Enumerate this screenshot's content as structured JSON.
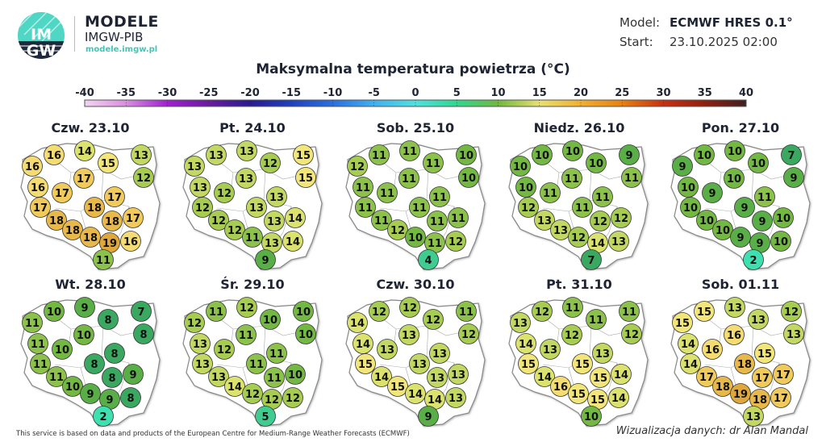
{
  "header": {
    "brand_title": "MODELE",
    "brand_subtitle": "IMGW-PIB",
    "brand_url": "modele.imgw.pl",
    "logo_text": "IMGW",
    "model_label": "Model:",
    "model_value": "ECMWF HRES 0.1°",
    "start_label": "Start:",
    "start_value": "23.10.2025 02:00"
  },
  "chart_data": {
    "type": "map-station-values",
    "title": "Maksymalna temperatura powietrza (°C)",
    "colorbar": {
      "ticks": [
        "-40",
        "-35",
        "-30",
        "-25",
        "-20",
        "-15",
        "-10",
        "-5",
        "0",
        "5",
        "10",
        "15",
        "20",
        "25",
        "30",
        "35",
        "40"
      ],
      "range": [
        -40,
        40
      ],
      "colors": [
        "#f4d4f0",
        "#d98ee0",
        "#a020d0",
        "#6a1aa0",
        "#2a1a90",
        "#2040c0",
        "#2a70e0",
        "#40b0f0",
        "#50e0e0",
        "#30d890",
        "#70b840",
        "#e8e070",
        "#f0b030",
        "#e88010",
        "#c83010",
        "#902010",
        "#402020"
      ]
    },
    "days": [
      {
        "label": "Czw. 23.10",
        "values": [
          16,
          16,
          14,
          15,
          13,
          12,
          16,
          17,
          17,
          17,
          17,
          18,
          18,
          18,
          17,
          18,
          18,
          19,
          16,
          11
        ]
      },
      {
        "label": "Pt. 24.10",
        "values": [
          13,
          13,
          13,
          12,
          15,
          15,
          13,
          13,
          12,
          13,
          12,
          13,
          12,
          13,
          14,
          12,
          11,
          13,
          14,
          9
        ]
      },
      {
        "label": "Sob. 25.10",
        "values": [
          12,
          11,
          11,
          11,
          10,
          10,
          11,
          11,
          11,
          11,
          11,
          11,
          11,
          11,
          11,
          12,
          10,
          11,
          12,
          4
        ]
      },
      {
        "label": "Niedz. 26.10",
        "values": [
          10,
          10,
          10,
          10,
          9,
          11,
          10,
          11,
          11,
          11,
          12,
          11,
          13,
          12,
          12,
          13,
          12,
          14,
          13,
          7
        ]
      },
      {
        "label": "Pon. 27.10",
        "values": [
          9,
          10,
          10,
          10,
          7,
          9,
          10,
          10,
          9,
          11,
          10,
          9,
          10,
          9,
          10,
          10,
          9,
          9,
          10,
          2
        ]
      },
      {
        "label": "Wt. 28.10",
        "values": [
          11,
          10,
          9,
          8,
          7,
          8,
          11,
          10,
          10,
          8,
          11,
          8,
          11,
          8,
          9,
          10,
          9,
          9,
          8,
          2
        ]
      },
      {
        "label": "Śr. 29.10",
        "values": [
          12,
          11,
          12,
          10,
          10,
          10,
          13,
          11,
          12,
          11,
          13,
          11,
          13,
          11,
          10,
          14,
          12,
          12,
          12,
          5
        ]
      },
      {
        "label": "Czw. 30.10",
        "values": [
          14,
          12,
          12,
          12,
          11,
          12,
          14,
          13,
          13,
          13,
          15,
          13,
          14,
          13,
          13,
          15,
          14,
          14,
          13,
          9
        ]
      },
      {
        "label": "Pt. 31.10",
        "values": [
          13,
          12,
          11,
          11,
          11,
          12,
          14,
          12,
          13,
          13,
          15,
          15,
          14,
          15,
          14,
          16,
          15,
          15,
          14,
          10
        ]
      },
      {
        "label": "Sob. 01.11",
        "values": [
          15,
          15,
          13,
          13,
          12,
          13,
          14,
          16,
          16,
          15,
          14,
          18,
          17,
          17,
          17,
          18,
          19,
          18,
          17,
          13
        ]
      }
    ]
  },
  "footer": {
    "source": "This service is based on data and products of the European Centre for Medium-Range Weather Forecasts (ECMWF)",
    "credit": "Wizualizacja danych: dr Alan Mandal"
  }
}
